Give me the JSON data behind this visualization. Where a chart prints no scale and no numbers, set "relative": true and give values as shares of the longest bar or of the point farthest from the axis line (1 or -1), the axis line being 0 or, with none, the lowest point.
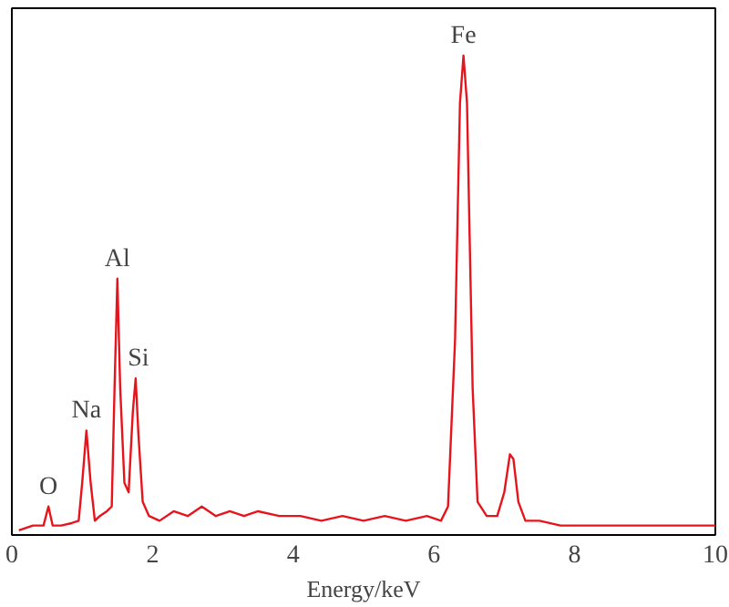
{
  "chart_data": {
    "type": "line",
    "xlabel": "Energy/keV",
    "relative": true,
    "x": [
      0.1,
      0.3,
      0.45,
      0.52,
      0.58,
      0.7,
      0.85,
      0.95,
      1.0,
      1.06,
      1.12,
      1.18,
      1.25,
      1.35,
      1.42,
      1.46,
      1.5,
      1.54,
      1.6,
      1.66,
      1.72,
      1.76,
      1.8,
      1.86,
      1.95,
      2.1,
      2.3,
      2.5,
      2.7,
      2.9,
      3.1,
      3.3,
      3.5,
      3.8,
      4.1,
      4.4,
      4.7,
      5.0,
      5.3,
      5.6,
      5.9,
      6.1,
      6.2,
      6.3,
      6.37,
      6.42,
      6.47,
      6.55,
      6.62,
      6.75,
      6.9,
      7.0,
      7.08,
      7.13,
      7.2,
      7.3,
      7.5,
      7.8,
      8.2,
      8.6,
      9.0,
      9.4,
      9.8,
      10
    ],
    "series": [
      {
        "color": "#e8141c",
        "values": [
          0.0,
          0.01,
          0.01,
          0.05,
          0.01,
          0.01,
          0.015,
          0.02,
          0.1,
          0.21,
          0.1,
          0.02,
          0.03,
          0.04,
          0.05,
          0.3,
          0.53,
          0.3,
          0.1,
          0.08,
          0.25,
          0.32,
          0.2,
          0.06,
          0.03,
          0.02,
          0.04,
          0.03,
          0.05,
          0.03,
          0.04,
          0.03,
          0.04,
          0.03,
          0.03,
          0.02,
          0.03,
          0.02,
          0.03,
          0.02,
          0.03,
          0.02,
          0.05,
          0.4,
          0.9,
          1.0,
          0.9,
          0.3,
          0.06,
          0.03,
          0.03,
          0.08,
          0.16,
          0.15,
          0.06,
          0.02,
          0.02,
          0.01,
          0.01,
          0.01,
          0.01,
          0.01,
          0.01,
          0.01
        ]
      }
    ],
    "xlim": [
      0,
      10
    ],
    "xticks": [
      0,
      2,
      4,
      6,
      8,
      10
    ],
    "grid": false,
    "annotations": [
      {
        "text": "O",
        "x": 0.52,
        "y": 0.05
      },
      {
        "text": "Na",
        "x": 1.06,
        "y": 0.21
      },
      {
        "text": "Al",
        "x": 1.5,
        "y": 0.53
      },
      {
        "text": "Si",
        "x": 1.8,
        "y": 0.32
      },
      {
        "text": "Fe",
        "x": 6.42,
        "y": 1.0
      }
    ]
  }
}
